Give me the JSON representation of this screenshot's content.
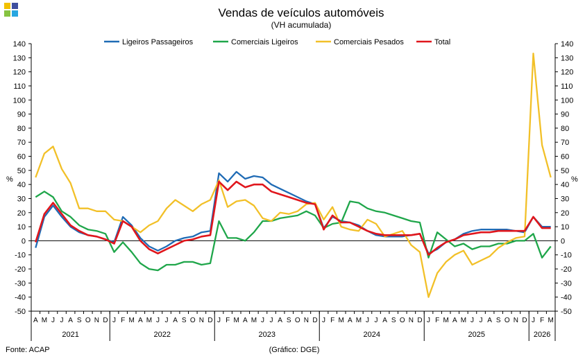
{
  "logo": {
    "colors": [
      "#f2c100",
      "#3f4f9e",
      "#86c341",
      "#27a6e0"
    ]
  },
  "chart_data": {
    "type": "line",
    "title": "Vendas de veículos automóveis",
    "subtitle": "(VH acumulada)",
    "ylabel_left": "%",
    "ylabel_right": "%",
    "ylim": [
      -50,
      140
    ],
    "yticks": [
      -50,
      -40,
      -30,
      -20,
      -10,
      0,
      10,
      20,
      30,
      40,
      50,
      60,
      70,
      80,
      90,
      100,
      110,
      120,
      130,
      140
    ],
    "months": [
      "A",
      "M",
      "J",
      "J",
      "A",
      "S",
      "O",
      "N",
      "D",
      "J",
      "F",
      "M",
      "A",
      "M",
      "J",
      "J",
      "A",
      "S",
      "O",
      "N",
      "D",
      "J",
      "F",
      "M",
      "A",
      "M",
      "J",
      "J",
      "A",
      "S",
      "O",
      "N",
      "D",
      "J",
      "F",
      "M",
      "A",
      "M",
      "J",
      "J",
      "A",
      "S",
      "O",
      "N",
      "D",
      "J",
      "F",
      "M",
      "A",
      "M",
      "J",
      "J",
      "A",
      "S",
      "O",
      "N",
      "D",
      "J",
      "F",
      "M"
    ],
    "years": [
      {
        "label": "2021",
        "months": 9
      },
      {
        "label": "2022",
        "months": 12
      },
      {
        "label": "2023",
        "months": 12
      },
      {
        "label": "2024",
        "months": 12
      },
      {
        "label": "2025",
        "months": 12
      },
      {
        "label": "2026",
        "months": 3
      }
    ],
    "series": [
      {
        "name": "Ligeiros Passageiros",
        "color": "#1f6bb5",
        "values": [
          -5,
          17,
          25,
          17,
          10,
          6,
          4,
          3,
          1,
          -1,
          17,
          11,
          2,
          -4,
          -7,
          -4,
          0,
          2,
          3,
          6,
          7,
          48,
          42,
          49,
          44,
          46,
          45,
          40,
          37,
          34,
          31,
          28,
          26,
          9,
          17,
          14,
          13,
          11,
          7,
          4,
          3,
          3,
          3,
          4,
          5,
          -9,
          -6,
          -1,
          1,
          5,
          7,
          8,
          8,
          8,
          8,
          7,
          6,
          17,
          10,
          10
        ]
      },
      {
        "name": "Comerciais Ligeiros",
        "color": "#1fa64a",
        "values": [
          31,
          35,
          31,
          21,
          17,
          11,
          8,
          7,
          5,
          -8,
          -1,
          -8,
          -16,
          -20,
          -21,
          -17,
          -17,
          -15,
          -15,
          -17,
          -16,
          14,
          2,
          2,
          0,
          6,
          14,
          14,
          16,
          17,
          18,
          21,
          18,
          9,
          12,
          13,
          28,
          27,
          23,
          21,
          20,
          18,
          16,
          14,
          13,
          -12,
          6,
          1,
          -4,
          -2,
          -6,
          -4,
          -4,
          -2,
          -2,
          0,
          0,
          5,
          -12,
          -4
        ]
      },
      {
        "name": "Comerciais Pesados",
        "color": "#f2c028",
        "values": [
          45,
          62,
          67,
          51,
          41,
          23,
          23,
          21,
          21,
          15,
          14,
          10,
          6,
          11,
          14,
          23,
          29,
          25,
          21,
          26,
          29,
          43,
          24,
          28,
          29,
          25,
          16,
          14,
          20,
          19,
          21,
          26,
          27,
          15,
          24,
          10,
          8,
          7,
          15,
          12,
          3,
          5,
          7,
          -3,
          -8,
          -40,
          -23,
          -15,
          -10,
          -7,
          -17,
          -14,
          -11,
          -5,
          -1,
          2,
          3,
          133,
          68,
          45
        ]
      },
      {
        "name": "Total",
        "color": "#e0161c",
        "values": [
          -1,
          19,
          27,
          19,
          11,
          7,
          4,
          3,
          1,
          -2,
          14,
          10,
          0,
          -6,
          -9,
          -6,
          -3,
          0,
          1,
          3,
          4,
          42,
          36,
          42,
          38,
          40,
          40,
          35,
          33,
          31,
          29,
          27,
          26,
          8,
          18,
          13,
          13,
          10,
          7,
          5,
          4,
          4,
          4,
          4,
          5,
          -10,
          -5,
          -1,
          1,
          4,
          5,
          6,
          6,
          7,
          7,
          7,
          7,
          17,
          9,
          9
        ]
      }
    ],
    "footer_left": "Fonte: ACAP",
    "footer_center": "(Gráfico: DGE)"
  }
}
